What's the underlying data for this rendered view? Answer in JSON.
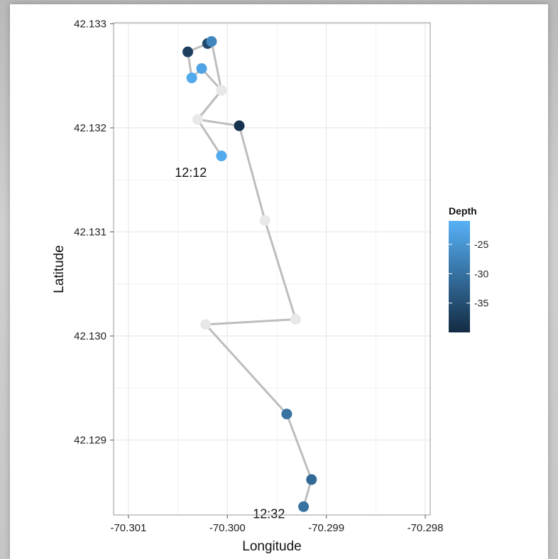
{
  "chart_data": {
    "type": "scatter",
    "xlabel": "Longitude",
    "ylabel": "Latitude",
    "xlim": [
      -70.30115,
      -70.29795
    ],
    "ylim": [
      42.12828,
      42.13301
    ],
    "x_ticks": [
      -70.301,
      -70.3,
      -70.299,
      -70.298
    ],
    "x_tick_labels": [
      "-70.301",
      "-70.300",
      "-70.299",
      "-70.298"
    ],
    "y_ticks": [
      42.129,
      42.13,
      42.131,
      42.132,
      42.133
    ],
    "y_tick_labels": [
      "42.129",
      "42.130",
      "42.131",
      "42.132",
      "42.133"
    ],
    "grid": true,
    "points": [
      {
        "x": -70.30006,
        "y": 42.13173,
        "depth": -22
      },
      {
        "x": -70.3003,
        "y": 42.13208,
        "depth": null
      },
      {
        "x": -70.30006,
        "y": 42.13236,
        "depth": null
      },
      {
        "x": -70.30026,
        "y": 42.13257,
        "depth": -23
      },
      {
        "x": -70.30036,
        "y": 42.13248,
        "depth": -22
      },
      {
        "x": -70.3004,
        "y": 42.13273,
        "depth": -37
      },
      {
        "x": -70.3002,
        "y": 42.13281,
        "depth": -36
      },
      {
        "x": -70.30016,
        "y": 42.13283,
        "depth": -27
      },
      {
        "x": -70.30006,
        "y": 42.13236,
        "depth": null
      },
      {
        "x": -70.3003,
        "y": 42.13208,
        "depth": null
      },
      {
        "x": -70.29988,
        "y": 42.13202,
        "depth": -39
      },
      {
        "x": -70.29962,
        "y": 42.13111,
        "depth": null
      },
      {
        "x": -70.29931,
        "y": 42.13016,
        "depth": null
      },
      {
        "x": -70.30022,
        "y": 42.13011,
        "depth": null
      },
      {
        "x": -70.2994,
        "y": 42.12925,
        "depth": -30
      },
      {
        "x": -70.29915,
        "y": 42.12862,
        "depth": -31
      },
      {
        "x": -70.29923,
        "y": 42.12836,
        "depth": -30
      }
    ],
    "annotations": [
      {
        "text": "12:12",
        "x": -70.30037,
        "y": 42.13157
      },
      {
        "text": "12:32",
        "x": -70.29958,
        "y": 42.12829
      }
    ],
    "legend": {
      "title": "Depth",
      "position": "right",
      "range": [
        -40,
        -21
      ],
      "ticks": [
        -25,
        -30,
        -35
      ],
      "tick_labels": [
        "-25",
        "-30",
        "-35"
      ],
      "color_low": "#132b43",
      "color_high": "#56b1f7"
    },
    "colors": {
      "path": "#bdbdbd",
      "missing_point": "#e8e8e8",
      "grid": "#ececec",
      "panel_border": "#9a9a9a"
    }
  }
}
